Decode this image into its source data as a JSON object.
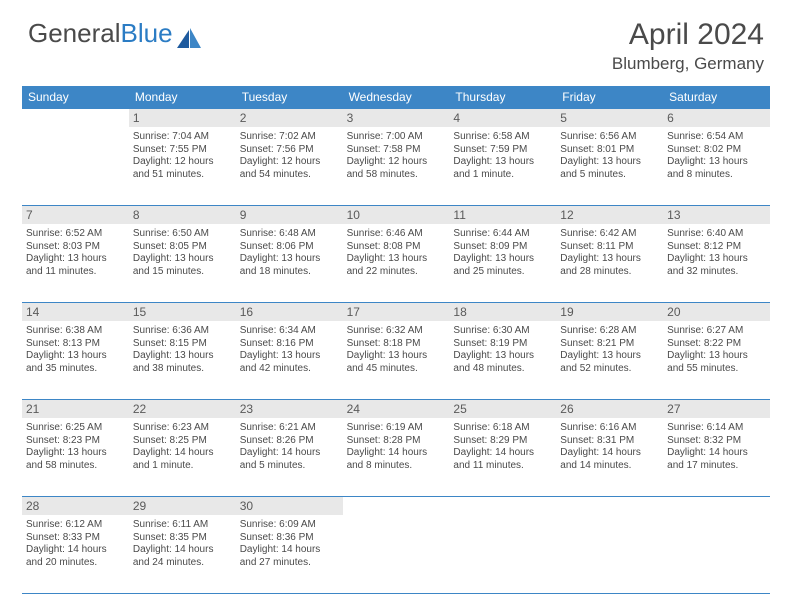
{
  "logo": {
    "text1": "General",
    "text2": "Blue"
  },
  "title": "April 2024",
  "location": "Blumberg, Germany",
  "weekdays": [
    "Sunday",
    "Monday",
    "Tuesday",
    "Wednesday",
    "Thursday",
    "Friday",
    "Saturday"
  ],
  "header_bg": "#3d86c6",
  "daynum_bg": "#e8e8e8",
  "border_color": "#3d86c6",
  "weeks": [
    {
      "nums": [
        "",
        "1",
        "2",
        "3",
        "4",
        "5",
        "6"
      ],
      "cells": [
        {},
        {
          "sunrise": "Sunrise: 7:04 AM",
          "sunset": "Sunset: 7:55 PM",
          "d1": "Daylight: 12 hours",
          "d2": "and 51 minutes."
        },
        {
          "sunrise": "Sunrise: 7:02 AM",
          "sunset": "Sunset: 7:56 PM",
          "d1": "Daylight: 12 hours",
          "d2": "and 54 minutes."
        },
        {
          "sunrise": "Sunrise: 7:00 AM",
          "sunset": "Sunset: 7:58 PM",
          "d1": "Daylight: 12 hours",
          "d2": "and 58 minutes."
        },
        {
          "sunrise": "Sunrise: 6:58 AM",
          "sunset": "Sunset: 7:59 PM",
          "d1": "Daylight: 13 hours",
          "d2": "and 1 minute."
        },
        {
          "sunrise": "Sunrise: 6:56 AM",
          "sunset": "Sunset: 8:01 PM",
          "d1": "Daylight: 13 hours",
          "d2": "and 5 minutes."
        },
        {
          "sunrise": "Sunrise: 6:54 AM",
          "sunset": "Sunset: 8:02 PM",
          "d1": "Daylight: 13 hours",
          "d2": "and 8 minutes."
        }
      ]
    },
    {
      "nums": [
        "7",
        "8",
        "9",
        "10",
        "11",
        "12",
        "13"
      ],
      "cells": [
        {
          "sunrise": "Sunrise: 6:52 AM",
          "sunset": "Sunset: 8:03 PM",
          "d1": "Daylight: 13 hours",
          "d2": "and 11 minutes."
        },
        {
          "sunrise": "Sunrise: 6:50 AM",
          "sunset": "Sunset: 8:05 PM",
          "d1": "Daylight: 13 hours",
          "d2": "and 15 minutes."
        },
        {
          "sunrise": "Sunrise: 6:48 AM",
          "sunset": "Sunset: 8:06 PM",
          "d1": "Daylight: 13 hours",
          "d2": "and 18 minutes."
        },
        {
          "sunrise": "Sunrise: 6:46 AM",
          "sunset": "Sunset: 8:08 PM",
          "d1": "Daylight: 13 hours",
          "d2": "and 22 minutes."
        },
        {
          "sunrise": "Sunrise: 6:44 AM",
          "sunset": "Sunset: 8:09 PM",
          "d1": "Daylight: 13 hours",
          "d2": "and 25 minutes."
        },
        {
          "sunrise": "Sunrise: 6:42 AM",
          "sunset": "Sunset: 8:11 PM",
          "d1": "Daylight: 13 hours",
          "d2": "and 28 minutes."
        },
        {
          "sunrise": "Sunrise: 6:40 AM",
          "sunset": "Sunset: 8:12 PM",
          "d1": "Daylight: 13 hours",
          "d2": "and 32 minutes."
        }
      ]
    },
    {
      "nums": [
        "14",
        "15",
        "16",
        "17",
        "18",
        "19",
        "20"
      ],
      "cells": [
        {
          "sunrise": "Sunrise: 6:38 AM",
          "sunset": "Sunset: 8:13 PM",
          "d1": "Daylight: 13 hours",
          "d2": "and 35 minutes."
        },
        {
          "sunrise": "Sunrise: 6:36 AM",
          "sunset": "Sunset: 8:15 PM",
          "d1": "Daylight: 13 hours",
          "d2": "and 38 minutes."
        },
        {
          "sunrise": "Sunrise: 6:34 AM",
          "sunset": "Sunset: 8:16 PM",
          "d1": "Daylight: 13 hours",
          "d2": "and 42 minutes."
        },
        {
          "sunrise": "Sunrise: 6:32 AM",
          "sunset": "Sunset: 8:18 PM",
          "d1": "Daylight: 13 hours",
          "d2": "and 45 minutes."
        },
        {
          "sunrise": "Sunrise: 6:30 AM",
          "sunset": "Sunset: 8:19 PM",
          "d1": "Daylight: 13 hours",
          "d2": "and 48 minutes."
        },
        {
          "sunrise": "Sunrise: 6:28 AM",
          "sunset": "Sunset: 8:21 PM",
          "d1": "Daylight: 13 hours",
          "d2": "and 52 minutes."
        },
        {
          "sunrise": "Sunrise: 6:27 AM",
          "sunset": "Sunset: 8:22 PM",
          "d1": "Daylight: 13 hours",
          "d2": "and 55 minutes."
        }
      ]
    },
    {
      "nums": [
        "21",
        "22",
        "23",
        "24",
        "25",
        "26",
        "27"
      ],
      "cells": [
        {
          "sunrise": "Sunrise: 6:25 AM",
          "sunset": "Sunset: 8:23 PM",
          "d1": "Daylight: 13 hours",
          "d2": "and 58 minutes."
        },
        {
          "sunrise": "Sunrise: 6:23 AM",
          "sunset": "Sunset: 8:25 PM",
          "d1": "Daylight: 14 hours",
          "d2": "and 1 minute."
        },
        {
          "sunrise": "Sunrise: 6:21 AM",
          "sunset": "Sunset: 8:26 PM",
          "d1": "Daylight: 14 hours",
          "d2": "and 5 minutes."
        },
        {
          "sunrise": "Sunrise: 6:19 AM",
          "sunset": "Sunset: 8:28 PM",
          "d1": "Daylight: 14 hours",
          "d2": "and 8 minutes."
        },
        {
          "sunrise": "Sunrise: 6:18 AM",
          "sunset": "Sunset: 8:29 PM",
          "d1": "Daylight: 14 hours",
          "d2": "and 11 minutes."
        },
        {
          "sunrise": "Sunrise: 6:16 AM",
          "sunset": "Sunset: 8:31 PM",
          "d1": "Daylight: 14 hours",
          "d2": "and 14 minutes."
        },
        {
          "sunrise": "Sunrise: 6:14 AM",
          "sunset": "Sunset: 8:32 PM",
          "d1": "Daylight: 14 hours",
          "d2": "and 17 minutes."
        }
      ]
    },
    {
      "nums": [
        "28",
        "29",
        "30",
        "",
        "",
        "",
        ""
      ],
      "cells": [
        {
          "sunrise": "Sunrise: 6:12 AM",
          "sunset": "Sunset: 8:33 PM",
          "d1": "Daylight: 14 hours",
          "d2": "and 20 minutes."
        },
        {
          "sunrise": "Sunrise: 6:11 AM",
          "sunset": "Sunset: 8:35 PM",
          "d1": "Daylight: 14 hours",
          "d2": "and 24 minutes."
        },
        {
          "sunrise": "Sunrise: 6:09 AM",
          "sunset": "Sunset: 8:36 PM",
          "d1": "Daylight: 14 hours",
          "d2": "and 27 minutes."
        },
        {},
        {},
        {},
        {}
      ]
    }
  ]
}
